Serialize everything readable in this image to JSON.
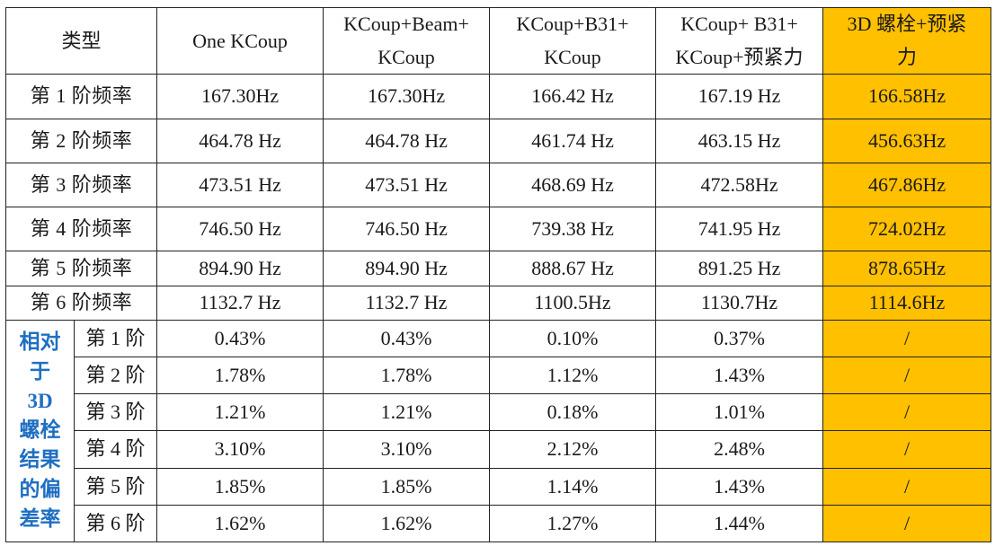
{
  "header": {
    "type_label": "类型",
    "columns": [
      "One KCoup",
      "KCoup+Beam+KCoup",
      "KCoup+B31+KCoup",
      "KCoup+ B31+KCoup+预紧力",
      "3D 螺栓+预紧力"
    ],
    "col_lines": [
      [
        "One KCoup"
      ],
      [
        "KCoup+Beam+",
        "KCoup"
      ],
      [
        "KCoup+B31+",
        "KCoup"
      ],
      [
        "KCoup+ B31+",
        "KCoup+预紧力"
      ],
      [
        "3D 螺栓+预紧",
        "力"
      ]
    ]
  },
  "frequency_rows": [
    {
      "label": "第 1 阶频率",
      "values": [
        "167.30Hz",
        "167.30Hz",
        "166.42 Hz",
        "167.19 Hz",
        "166.58Hz"
      ]
    },
    {
      "label": "第 2 阶频率",
      "values": [
        "464.78 Hz",
        "464.78 Hz",
        "461.74 Hz",
        "463.15 Hz",
        "456.63Hz"
      ]
    },
    {
      "label": "第 3 阶频率",
      "values": [
        "473.51 Hz",
        "473.51 Hz",
        "468.69 Hz",
        "472.58Hz",
        "467.86Hz"
      ]
    },
    {
      "label": "第 4 阶频率",
      "values": [
        "746.50 Hz",
        "746.50 Hz",
        "739.38 Hz",
        "741.95 Hz",
        "724.02Hz"
      ]
    },
    {
      "label": "第 5 阶频率",
      "values": [
        "894.90 Hz",
        "894.90 Hz",
        "888.67 Hz",
        "891.25 Hz",
        "878.65Hz"
      ]
    },
    {
      "label": "第 6 阶频率",
      "values": [
        "1132.7 Hz",
        "1132.7 Hz",
        "1100.5Hz",
        "1130.7Hz",
        "1114.6Hz"
      ]
    }
  ],
  "deviation": {
    "side_label_lines": [
      "相对",
      "于",
      "3D",
      "螺栓",
      "结果",
      "的偏",
      "差率"
    ],
    "rows": [
      {
        "label": "第 1 阶",
        "values": [
          "0.43%",
          "0.43%",
          "0.10%",
          "0.37%",
          "/"
        ]
      },
      {
        "label": "第 2 阶",
        "values": [
          "1.78%",
          "1.78%",
          "1.12%",
          "1.43%",
          "/"
        ]
      },
      {
        "label": "第 3 阶",
        "values": [
          "1.21%",
          "1.21%",
          "0.18%",
          "1.01%",
          "/"
        ]
      },
      {
        "label": "第 4 阶",
        "values": [
          "3.10%",
          "3.10%",
          "2.12%",
          "2.48%",
          "/"
        ]
      },
      {
        "label": "第 5 阶",
        "values": [
          "1.85%",
          "1.85%",
          "1.14%",
          "1.43%",
          "/"
        ]
      },
      {
        "label": "第 6 阶",
        "values": [
          "1.62%",
          "1.62%",
          "1.27%",
          "1.44%",
          "/"
        ]
      }
    ]
  },
  "colors": {
    "highlight": "#ffc000",
    "side_label": "#1f6fc1",
    "border": "#222222"
  }
}
